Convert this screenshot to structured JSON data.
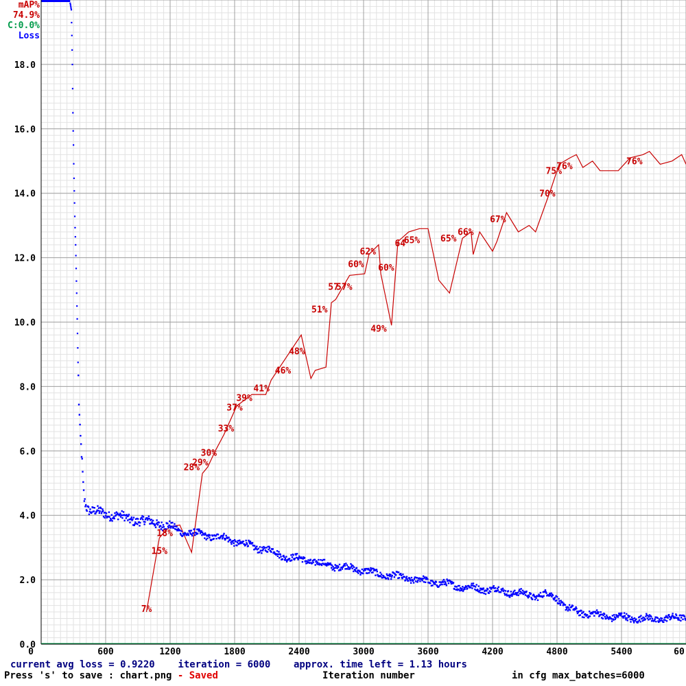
{
  "legend": {
    "map_label": "mAP%",
    "map_value": "74.9%",
    "c_value": "C:0.0%",
    "loss_label": "Loss"
  },
  "footer": {
    "line1": "current avg loss = 0.9220    iteration = 6000    approx. time left = 1.13 hours",
    "save_prefix": "Press 's' to save : chart.png",
    "save_status": " - Saved",
    "xlabel": "Iteration number",
    "max_batches": "in cfg max_batches=6000"
  },
  "colors": {
    "loss": "#0000ff",
    "map": "#c80000",
    "c": "#009b4a",
    "grid_major": "#a0a0a0",
    "grid_minor": "#e2e2e2",
    "axis": "#000000"
  },
  "chart_data": {
    "type": "line",
    "xlim": [
      0,
      6000
    ],
    "ylim": [
      0,
      20
    ],
    "x_ticks": [
      "0",
      "600",
      "1200",
      "1800",
      "2400",
      "3000",
      "3600",
      "4200",
      "4800",
      "5400",
      "60"
    ],
    "y_ticks": [
      "0.0",
      "2.0",
      "4.0",
      "6.0",
      "8.0",
      "10.0",
      "12.0",
      "14.0",
      "16.0",
      "18.0"
    ],
    "grid": true,
    "legend_placement": "top-left",
    "series": [
      {
        "name": "Loss",
        "x": [
          270,
          280,
          285,
          290,
          293,
          296,
          300,
          303,
          306,
          310,
          313,
          316,
          320,
          323,
          326,
          330,
          335,
          340,
          345,
          350,
          360,
          370,
          380,
          390,
          400,
          420,
          450,
          500,
          550,
          600,
          700,
          800,
          900,
          1000,
          1100,
          1200,
          1300,
          1400,
          1500,
          1600,
          1700,
          1800,
          1900,
          2000,
          2100,
          2200,
          2300,
          2400,
          2500,
          2600,
          2700,
          2800,
          2900,
          3000,
          3100,
          3200,
          3300,
          3400,
          3500,
          3600,
          3700,
          3800,
          3900,
          4000,
          4100,
          4200,
          4300,
          4400,
          4500,
          4600,
          4700,
          4800,
          4850,
          4900,
          5000,
          5100,
          5200,
          5300,
          5400,
          5500,
          5600,
          5700,
          5800,
          5900,
          6000
        ],
        "y": [
          19.9,
          19.7,
          18.9,
          18.0,
          17.1,
          16.2,
          15.5,
          14.8,
          14.3,
          13.7,
          13.2,
          12.8,
          12.4,
          12.0,
          11.5,
          10.9,
          10.1,
          9.2,
          8.3,
          7.5,
          6.7,
          6.2,
          5.7,
          5.0,
          4.55,
          4.3,
          4.15,
          4.1,
          4.1,
          4.05,
          4.0,
          3.9,
          3.85,
          3.8,
          3.75,
          3.65,
          3.5,
          3.45,
          3.4,
          3.35,
          3.3,
          3.2,
          3.1,
          3.0,
          2.95,
          2.8,
          2.7,
          2.65,
          2.6,
          2.5,
          2.45,
          2.4,
          2.35,
          2.3,
          2.2,
          2.15,
          2.1,
          2.05,
          2.0,
          1.95,
          1.9,
          1.85,
          1.8,
          1.75,
          1.72,
          1.7,
          1.65,
          1.6,
          1.55,
          1.5,
          1.55,
          1.45,
          1.25,
          1.1,
          1.0,
          0.95,
          0.9,
          0.85,
          0.85,
          0.8,
          0.8,
          0.78,
          0.8,
          0.8,
          0.9
        ]
      },
      {
        "name": "mAP%",
        "x": [
          980,
          1100,
          1150,
          1200,
          1290,
          1400,
          1500,
          1550,
          1620,
          1700,
          1820,
          1960,
          2090,
          2140,
          2280,
          2420,
          2510,
          2550,
          2650,
          2700,
          2740,
          2870,
          3010,
          3050,
          3140,
          3160,
          3260,
          3320,
          3420,
          3520,
          3600,
          3700,
          3800,
          3920,
          4000,
          4020,
          4080,
          4200,
          4240,
          4330,
          4440,
          4540,
          4600,
          4740,
          4800,
          4820,
          4920,
          4980,
          5040,
          5130,
          5200,
          5370,
          5480,
          5600,
          5660,
          5760,
          5870,
          5960,
          6000
        ],
        "y": [
          1.0,
          3.3,
          3.5,
          3.65,
          3.7,
          2.85,
          5.3,
          5.5,
          6.0,
          6.5,
          7.4,
          7.75,
          7.75,
          8.2,
          8.9,
          9.6,
          8.25,
          8.5,
          8.6,
          10.6,
          10.7,
          11.45,
          11.5,
          12.1,
          12.4,
          11.5,
          9.9,
          12.5,
          12.8,
          12.9,
          12.9,
          11.3,
          10.9,
          12.6,
          12.8,
          12.1,
          12.8,
          12.2,
          12.5,
          13.4,
          12.8,
          13.0,
          12.8,
          14.1,
          14.7,
          14.9,
          15.1,
          15.2,
          14.8,
          15.0,
          14.7,
          14.7,
          15.1,
          15.2,
          15.3,
          14.9,
          15.0,
          15.2,
          14.9
        ]
      }
    ],
    "point_labels": [
      {
        "x": 980,
        "y": 1.0,
        "text": "7%"
      },
      {
        "x": 1100,
        "y": 2.8,
        "text": "15%"
      },
      {
        "x": 1150,
        "y": 3.35,
        "text": "18%"
      },
      {
        "x": 1400,
        "y": 5.4,
        "text": "28%"
      },
      {
        "x": 1480,
        "y": 5.55,
        "text": "29%"
      },
      {
        "x": 1560,
        "y": 5.85,
        "text": "30%"
      },
      {
        "x": 1720,
        "y": 6.6,
        "text": "33%"
      },
      {
        "x": 1800,
        "y": 7.25,
        "text": "37%"
      },
      {
        "x": 1890,
        "y": 7.55,
        "text": "39%"
      },
      {
        "x": 2050,
        "y": 7.85,
        "text": "41%"
      },
      {
        "x": 2250,
        "y": 8.4,
        "text": "46%"
      },
      {
        "x": 2380,
        "y": 9.0,
        "text": "48%"
      },
      {
        "x": 2590,
        "y": 10.3,
        "text": "51%"
      },
      {
        "x": 2720,
        "y": 11.0,
        "text": "57"
      },
      {
        "x": 2820,
        "y": 11.0,
        "text": "57%"
      },
      {
        "x": 2930,
        "y": 11.7,
        "text": "60%"
      },
      {
        "x": 3040,
        "y": 12.1,
        "text": "62%"
      },
      {
        "x": 3210,
        "y": 11.6,
        "text": "60%"
      },
      {
        "x": 3140,
        "y": 9.7,
        "text": "49%"
      },
      {
        "x": 3340,
        "y": 12.35,
        "text": "64"
      },
      {
        "x": 3450,
        "y": 12.45,
        "text": "65%"
      },
      {
        "x": 3790,
        "y": 12.5,
        "text": "65%"
      },
      {
        "x": 3950,
        "y": 12.7,
        "text": "66%"
      },
      {
        "x": 4250,
        "y": 13.1,
        "text": "67%"
      },
      {
        "x": 4710,
        "y": 13.9,
        "text": "70%"
      },
      {
        "x": 4770,
        "y": 14.6,
        "text": "75%"
      },
      {
        "x": 4870,
        "y": 14.75,
        "text": "76%"
      },
      {
        "x": 5520,
        "y": 14.9,
        "text": "76%"
      }
    ]
  }
}
